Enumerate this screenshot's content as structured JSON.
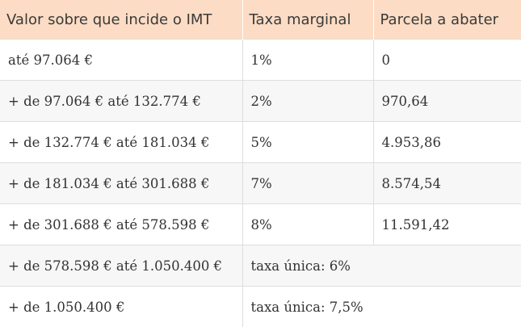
{
  "table": {
    "headers": [
      "Valor sobre que incide o IMT",
      "Taxa marginal",
      "Parcela a abater"
    ],
    "rows": [
      {
        "valor": "até 97.064 €",
        "taxa": "1%",
        "parcela": "0"
      },
      {
        "valor": "+ de 97.064 € até 132.774 €",
        "taxa": "2%",
        "parcela": "970,64"
      },
      {
        "valor": "+ de 132.774 € até 181.034 €",
        "taxa": "5%",
        "parcela": "4.953,86"
      },
      {
        "valor": "+ de 181.034 € até 301.688 €",
        "taxa": "7%",
        "parcela": "8.574,54"
      },
      {
        "valor": "+ de 301.688 € até 578.598 €",
        "taxa": "8%",
        "parcela": "11.591,42"
      },
      {
        "valor": "+ de 578.598 € até 1.050.400 €",
        "taxa": "taxa única: 6%"
      },
      {
        "valor": "+ de 1.050.400 €",
        "taxa": "taxa única: 7,5%"
      }
    ]
  },
  "colors": {
    "header_background": "#fcdcc4",
    "alt_row_background": "#f7f7f7"
  }
}
